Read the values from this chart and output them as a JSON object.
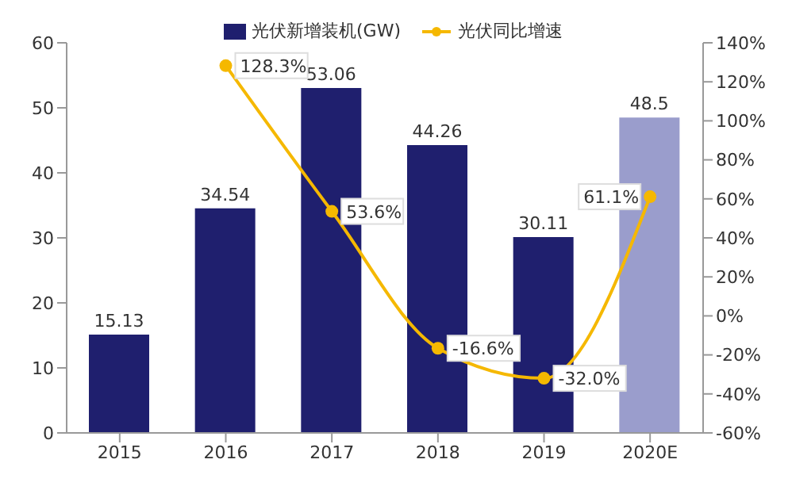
{
  "chart_data": {
    "type": "bar",
    "categories": [
      "2015",
      "2016",
      "2017",
      "2018",
      "2019",
      "2020E"
    ],
    "series": [
      {
        "name": "光伏新增装机(GW)",
        "color": "#1f1f6e",
        "colors": [
          "#1f1f6e",
          "#1f1f6e",
          "#1f1f6e",
          "#1f1f6e",
          "#1f1f6e",
          "#9a9dcc"
        ],
        "values": [
          15.13,
          34.54,
          53.06,
          44.26,
          30.11,
          48.5
        ]
      },
      {
        "name": "光伏同比增速",
        "type": "line",
        "axis": "y2",
        "color": "#f5b800",
        "values": [
          null,
          128.3,
          53.6,
          -16.6,
          -32.0,
          61.1
        ],
        "value_labels": [
          null,
          "128.3%",
          "53.6%",
          "-16.6%",
          "-32.0%",
          "61.1%"
        ]
      }
    ],
    "data_labels": true,
    "ylim": [
      0,
      60
    ],
    "yticks": [
      0,
      10,
      20,
      30,
      40,
      50,
      60
    ],
    "y2lim": [
      -60,
      140
    ],
    "y2ticks": [
      {
        "value": -60,
        "label": "-60%"
      },
      {
        "value": -40,
        "label": "-40%"
      },
      {
        "value": -20,
        "label": "-20%"
      },
      {
        "value": 0,
        "label": "0%"
      },
      {
        "value": 20,
        "label": "20%"
      },
      {
        "value": 40,
        "label": "40%"
      },
      {
        "value": 60,
        "label": "60%"
      },
      {
        "value": 80,
        "label": "80%"
      },
      {
        "value": 100,
        "label": "100%"
      },
      {
        "value": 120,
        "label": "120%"
      },
      {
        "value": 140,
        "label": "140%"
      }
    ],
    "legend": "top",
    "marker": "circle",
    "grid": false
  }
}
